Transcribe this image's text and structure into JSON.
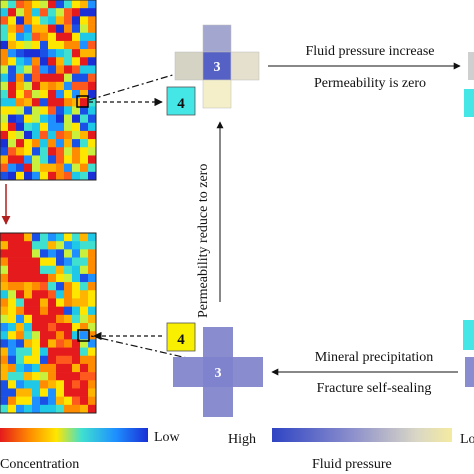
{
  "top_process": {
    "cell_label": "3",
    "neighbor_label": "4",
    "arrow_label_top": "Fluid pressure increase",
    "arrow_label_bottom": "Permeability is zero"
  },
  "bottom_process": {
    "cell_label": "3",
    "neighbor_label": "4",
    "arrow_label_top": "Mineral precipitation",
    "arrow_label_bottom": "Fracture self-sealing"
  },
  "vertical_label": "Permeability reduce to zero",
  "legend_concentration": {
    "low_label": "Low",
    "title": "Concentration"
  },
  "legend_pressure": {
    "high_label": "High",
    "low_label": "Lo",
    "title": "Fluid pressure"
  },
  "colors": {
    "cyan_cell": "#44e6e6",
    "yellow_cell": "#f8f000",
    "pressure_high": "#3d4fc8",
    "pressure_mid": "#8a8cd0",
    "pressure_low": "#f2ecc0",
    "arrow_red": "#b02020"
  }
}
